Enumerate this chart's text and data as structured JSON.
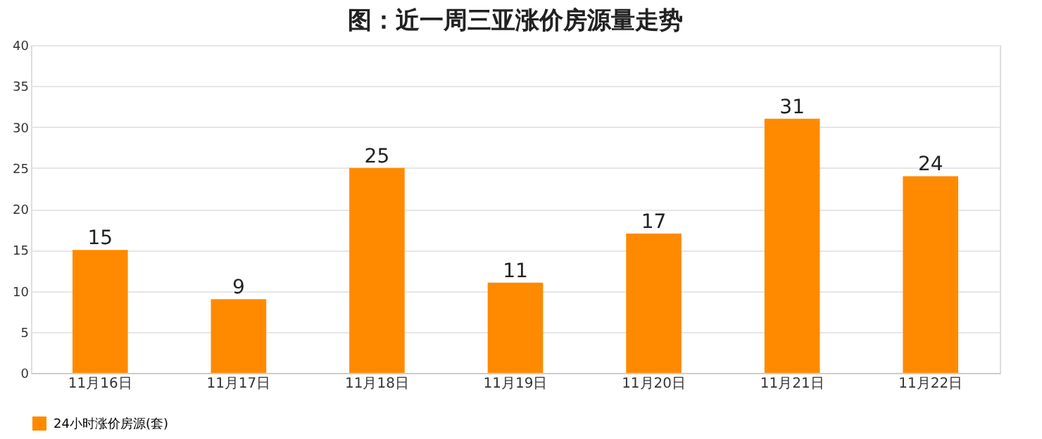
{
  "chart_data": {
    "type": "bar",
    "title": "图：近一周三亚涨价房源量走势",
    "categories": [
      "11月16日",
      "11月17日",
      "11月18日",
      "11月19日",
      "11月20日",
      "11月21日",
      "11月22日"
    ],
    "series": [
      {
        "name": "24小时涨价房源(套)",
        "color": "#ff8a00",
        "values": [
          15,
          9,
          25,
          11,
          17,
          31,
          24
        ]
      }
    ],
    "ylim": [
      0,
      40
    ],
    "yticks": [
      0,
      5,
      10,
      15,
      20,
      25,
      30,
      35,
      40
    ],
    "grid": "y",
    "legend": "bottom",
    "data_labels": true
  }
}
